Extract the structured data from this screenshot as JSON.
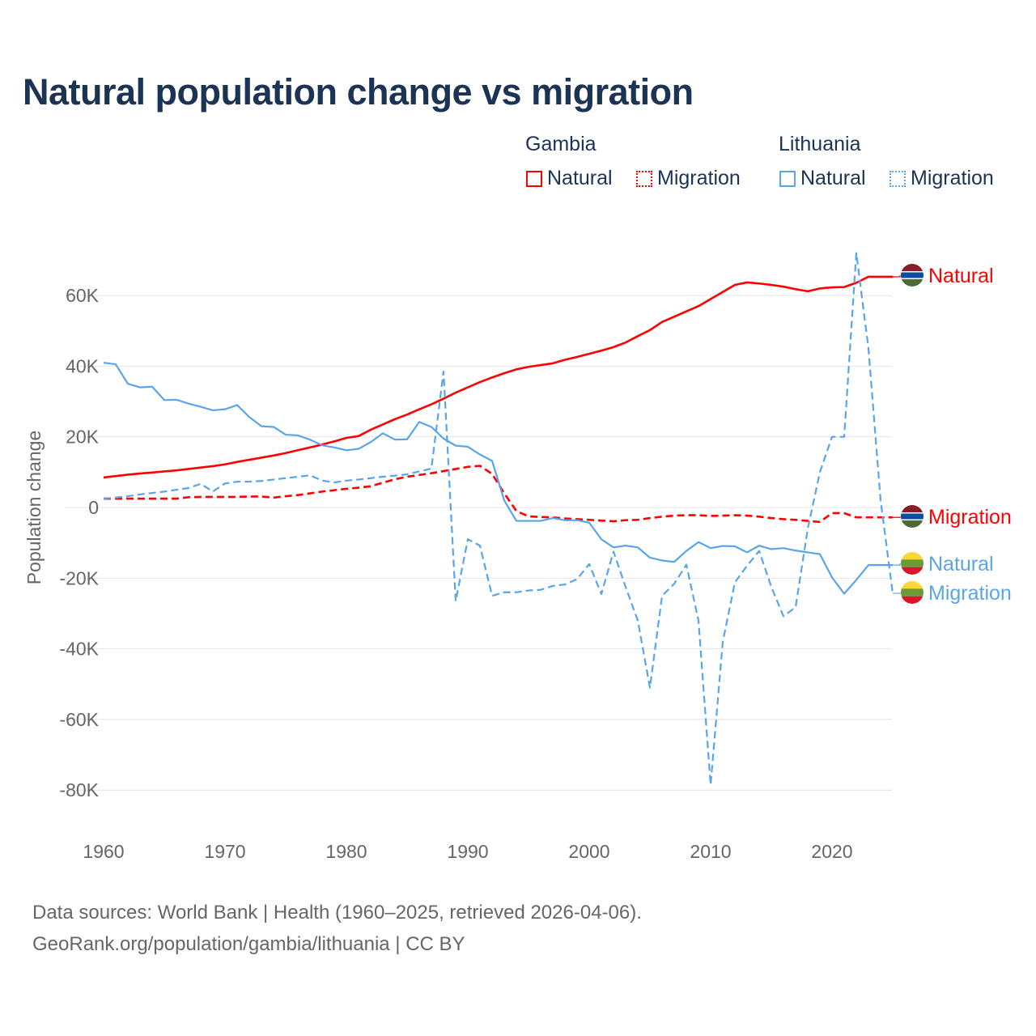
{
  "title": "Natural population change vs migration",
  "legend": {
    "groups": [
      {
        "name": "Gambia",
        "items": [
          "Natural",
          "Migration"
        ],
        "color": "#ff0000"
      },
      {
        "name": "Lithuania",
        "items": [
          "Natural",
          "Migration"
        ],
        "color": "#5aa5ea"
      }
    ]
  },
  "footer": {
    "line1": "Data sources: World Bank | Health (1960–2025, retrieved 2026-04-06).",
    "line2": "GeoRank.org/population/gambia/lithuania | CC BY"
  },
  "chart_data": {
    "type": "line",
    "title": "Natural population change vs migration",
    "xlabel": "",
    "ylabel": "Population change",
    "xlim": [
      1960,
      2025
    ],
    "ylim": [
      -90000,
      75000
    ],
    "xticks": [
      1960,
      1970,
      1980,
      1990,
      2000,
      2010,
      2020
    ],
    "xtick_labels": [
      "1960",
      "1970",
      "1980",
      "1990",
      "2000",
      "2010",
      "2020"
    ],
    "yticks": [
      60000,
      40000,
      20000,
      0,
      -20000,
      -40000,
      -60000,
      -80000
    ],
    "ytick_labels": [
      "60K",
      "40K",
      "20K",
      "0",
      "-20K",
      "-40K",
      "-60K",
      "-80K"
    ],
    "grid": true,
    "legend_position": "top-right",
    "x_start": 1960,
    "series": [
      {
        "name": "Gambia Natural",
        "end_label": "Natural",
        "color": "#ff0000",
        "dash": false,
        "flag": "gambia",
        "values": [
          8500,
          8900,
          9300,
          9600,
          9900,
          10200,
          10500,
          10900,
          11300,
          11700,
          12200,
          12900,
          13500,
          14100,
          14700,
          15400,
          16200,
          17000,
          17800,
          18700,
          19700,
          20200,
          22000,
          23500,
          25000,
          26300,
          27800,
          29200,
          30800,
          32500,
          34000,
          35500,
          36800,
          38000,
          39100,
          39800,
          40300,
          40800,
          41800,
          42600,
          43500,
          44400,
          45400,
          46700,
          48500,
          50200,
          52500,
          54000,
          55500,
          57000,
          59000,
          61000,
          63000,
          63700,
          63400,
          63000,
          62500,
          61800,
          61200,
          62000,
          62300,
          62400,
          63600,
          65300,
          65300,
          65300
        ]
      },
      {
        "name": "Gambia Migration",
        "end_label": "Migration",
        "color": "#ff0000",
        "dash": true,
        "flag": "gambia",
        "values": [
          2500,
          2500,
          2500,
          2500,
          2500,
          2500,
          2500,
          2900,
          3000,
          3000,
          3000,
          3000,
          3100,
          3100,
          2800,
          3200,
          3500,
          4000,
          4500,
          4900,
          5300,
          5600,
          6000,
          7000,
          8000,
          8700,
          9200,
          9700,
          10300,
          10900,
          11500,
          11800,
          9500,
          4000,
          -1000,
          -2500,
          -2700,
          -2800,
          -3100,
          -3300,
          -3500,
          -3700,
          -3900,
          -3600,
          -3500,
          -3000,
          -2600,
          -2300,
          -2200,
          -2200,
          -2400,
          -2300,
          -2200,
          -2300,
          -2600,
          -3000,
          -3300,
          -3500,
          -3800,
          -4100,
          -1600,
          -1600,
          -2800,
          -2800,
          -2800,
          -2800
        ]
      },
      {
        "name": "Lithuania Natural",
        "end_label": "Natural",
        "color": "#5aa5ea",
        "dash": false,
        "flag": "lithuania",
        "values": [
          41000,
          40500,
          35000,
          34000,
          34200,
          30400,
          30500,
          29400,
          28500,
          27500,
          27800,
          29000,
          25600,
          23000,
          22800,
          20600,
          20400,
          19200,
          17600,
          17000,
          16200,
          16600,
          18500,
          21000,
          19200,
          19300,
          24200,
          22800,
          19500,
          17500,
          17200,
          15000,
          13200,
          2000,
          -3800,
          -3800,
          -3800,
          -3000,
          -3600,
          -3600,
          -4300,
          -9000,
          -11300,
          -10800,
          -11300,
          -14200,
          -15000,
          -15400,
          -12300,
          -9800,
          -11500,
          -10900,
          -11000,
          -12700,
          -10800,
          -11800,
          -11500,
          -12200,
          -12700,
          -13200,
          -19800,
          -24400,
          -20500,
          -16300,
          -16300,
          -16300
        ]
      },
      {
        "name": "Lithuania Migration",
        "end_label": "Migration",
        "color": "#5aa5ea",
        "dash": true,
        "flag": "lithuania",
        "values": [
          2500,
          2800,
          3200,
          3700,
          4100,
          4500,
          5000,
          5500,
          6700,
          4500,
          6800,
          7300,
          7300,
          7500,
          7900,
          8300,
          8700,
          9100,
          7600,
          7100,
          7600,
          7900,
          8300,
          8700,
          9000,
          9400,
          10200,
          11000,
          38500,
          -26500,
          -9000,
          -10800,
          -25000,
          -24000,
          -24000,
          -23500,
          -23300,
          -22200,
          -21800,
          -20300,
          -16000,
          -24500,
          -12500,
          -22500,
          -32000,
          -51000,
          -25000,
          -21600,
          -16200,
          -32000,
          -78500,
          -38000,
          -21200,
          -16500,
          -12300,
          -22500,
          -30800,
          -28200,
          -6000,
          10000,
          20000,
          20000,
          72000,
          45000,
          2000,
          -24300
        ]
      }
    ]
  }
}
